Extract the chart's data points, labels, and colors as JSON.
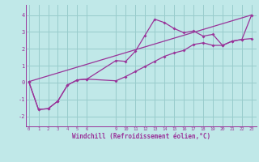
{
  "xlabel": "Windchill (Refroidissement éolien,°C)",
  "bg_color": "#c0e8e8",
  "grid_color": "#98cccc",
  "line_color": "#993399",
  "x_ticks": [
    0,
    1,
    2,
    3,
    4,
    5,
    6,
    9,
    10,
    11,
    12,
    13,
    14,
    15,
    16,
    17,
    18,
    19,
    20,
    21,
    22,
    23
  ],
  "xlim": [
    -0.3,
    23.5
  ],
  "ylim": [
    -2.6,
    4.6
  ],
  "yticks": [
    -2,
    -1,
    0,
    1,
    2,
    3,
    4
  ],
  "line1_x": [
    0,
    1,
    2,
    3,
    4,
    5,
    6,
    9,
    10,
    11,
    12,
    13,
    14,
    15,
    16,
    17,
    18,
    19,
    20,
    21,
    22,
    23
  ],
  "line1_y": [
    0.05,
    -1.6,
    -1.55,
    -1.1,
    -0.15,
    0.15,
    0.2,
    1.3,
    1.25,
    1.85,
    2.8,
    3.75,
    3.55,
    3.2,
    2.95,
    3.05,
    2.75,
    2.85,
    2.2,
    2.45,
    2.55,
    2.6
  ],
  "line2_x": [
    0,
    1,
    2,
    3,
    4,
    5,
    6,
    9,
    10,
    11,
    12,
    13,
    14,
    15,
    16,
    17,
    18,
    19,
    20,
    21,
    22,
    23
  ],
  "line2_y": [
    0.05,
    -1.6,
    -1.55,
    -1.1,
    -0.15,
    0.15,
    0.2,
    0.1,
    0.35,
    0.65,
    0.95,
    1.25,
    1.55,
    1.75,
    1.9,
    2.25,
    2.35,
    2.2,
    2.2,
    2.45,
    2.55,
    4.0
  ],
  "line3_x": [
    0,
    23
  ],
  "line3_y": [
    0.05,
    4.0
  ]
}
